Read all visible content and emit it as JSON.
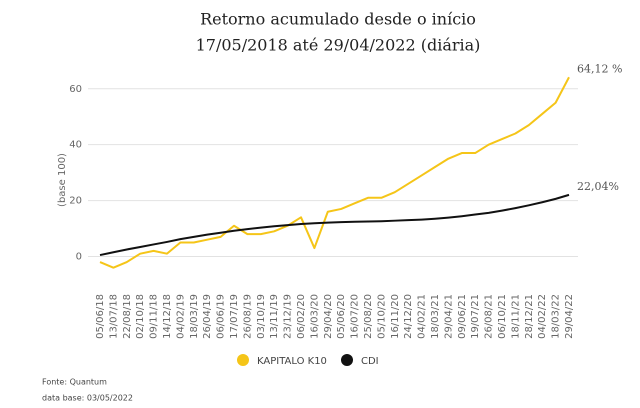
{
  "chart_data": {
    "type": "line",
    "title": "Retorno acumulado desde o início",
    "subtitle": "17/05/2018 até 29/04/2022 (diária)",
    "y_label": "(base 100)",
    "categories": [
      "05/06/18",
      "13/07/18",
      "22/08/18",
      "02/10/18",
      "09/11/18",
      "14/12/18",
      "04/02/19",
      "18/03/19",
      "26/04/19",
      "06/06/19",
      "17/07/19",
      "26/08/19",
      "03/10/19",
      "13/11/19",
      "23/12/19",
      "06/02/20",
      "16/03/20",
      "29/04/20",
      "05/06/20",
      "16/07/20",
      "25/08/20",
      "05/10/20",
      "16/11/20",
      "24/12/20",
      "04/02/21",
      "18/03/21",
      "29/04/21",
      "09/06/21",
      "19/07/21",
      "26/08/21",
      "06/10/21",
      "18/11/21",
      "28/12/21",
      "04/02/22",
      "18/03/22",
      "29/04/22"
    ],
    "series": [
      {
        "name": "KAPITALO K10",
        "color": "#f5c518",
        "values": [
          -2,
          -4,
          -2,
          1,
          2,
          1,
          5,
          5,
          6,
          7,
          11,
          8,
          8,
          9,
          11,
          14,
          3,
          16,
          17,
          19,
          21,
          21,
          23,
          26,
          29,
          32,
          35,
          37,
          37,
          40,
          42,
          44,
          47,
          51,
          55,
          64.12
        ]
      },
      {
        "name": "CDI",
        "color": "#111111",
        "values": [
          0.5,
          1.5,
          2.5,
          3.4,
          4.3,
          5.2,
          6.2,
          7.0,
          7.8,
          8.5,
          9.2,
          9.8,
          10.3,
          10.8,
          11.2,
          11.6,
          11.9,
          12.1,
          12.3,
          12.4,
          12.5,
          12.6,
          12.8,
          13.0,
          13.2,
          13.5,
          13.9,
          14.4,
          15.0,
          15.6,
          16.4,
          17.3,
          18.3,
          19.4,
          20.6,
          22.04
        ]
      }
    ],
    "annotations": [
      "64,12 %",
      "22,04%"
    ],
    "ylim": [
      -12,
      66
    ],
    "yticks": [
      0,
      20,
      40,
      60
    ],
    "grid": true,
    "legend": "bottom",
    "source": "Fonte: Quantum",
    "date_note": "data base: 03/05/2022"
  }
}
